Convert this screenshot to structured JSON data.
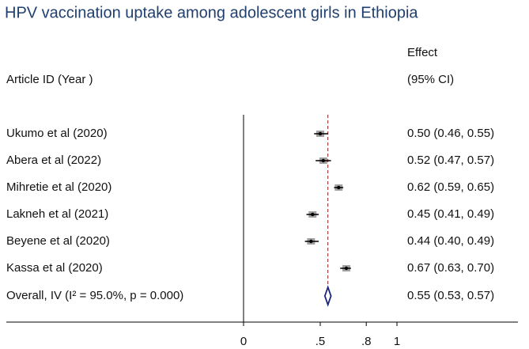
{
  "chart_data": {
    "type": "forest",
    "title": "HPV vaccination uptake among adolescent girls in Ethiopia",
    "label_header": "Article ID (Year )",
    "effect_header": "Effect",
    "ci_header": "(95% CI)",
    "categories": [
      "Ukumo et al  (2020)",
      "Abera et al (2022)",
      "Mihretie et al (2020)",
      "Lakneh et al (2021)",
      "Beyene et al (2020)",
      "Kassa et al (2020)"
    ],
    "values": [
      0.5,
      0.52,
      0.62,
      0.45,
      0.44,
      0.67
    ],
    "lower": [
      0.46,
      0.47,
      0.59,
      0.41,
      0.4,
      0.63
    ],
    "upper": [
      0.55,
      0.57,
      0.65,
      0.49,
      0.49,
      0.7
    ],
    "value_labels": [
      "0.50 (0.46, 0.55)",
      "0.52 (0.47, 0.57)",
      "0.62 (0.59, 0.65)",
      "0.45 (0.41, 0.49)",
      "0.44 (0.40, 0.49)",
      "0.67 (0.63, 0.70)"
    ],
    "overall": {
      "label": "Overall, IV (I² = 95.0%, p = 0.000)",
      "value": 0.55,
      "lower": 0.53,
      "upper": 0.57,
      "value_label": "0.55 (0.53, 0.57)"
    },
    "xlim": [
      0,
      1
    ],
    "xticks": [
      0,
      {
        "value": 0.5,
        "label": ".5"
      },
      {
        "value": 0.8,
        "label": ".8"
      },
      1
    ],
    "color": "#000000",
    "box_color": "#a0a0a0",
    "diamond_color": "#1a237e",
    "ref_color": "#8b1a1a"
  }
}
